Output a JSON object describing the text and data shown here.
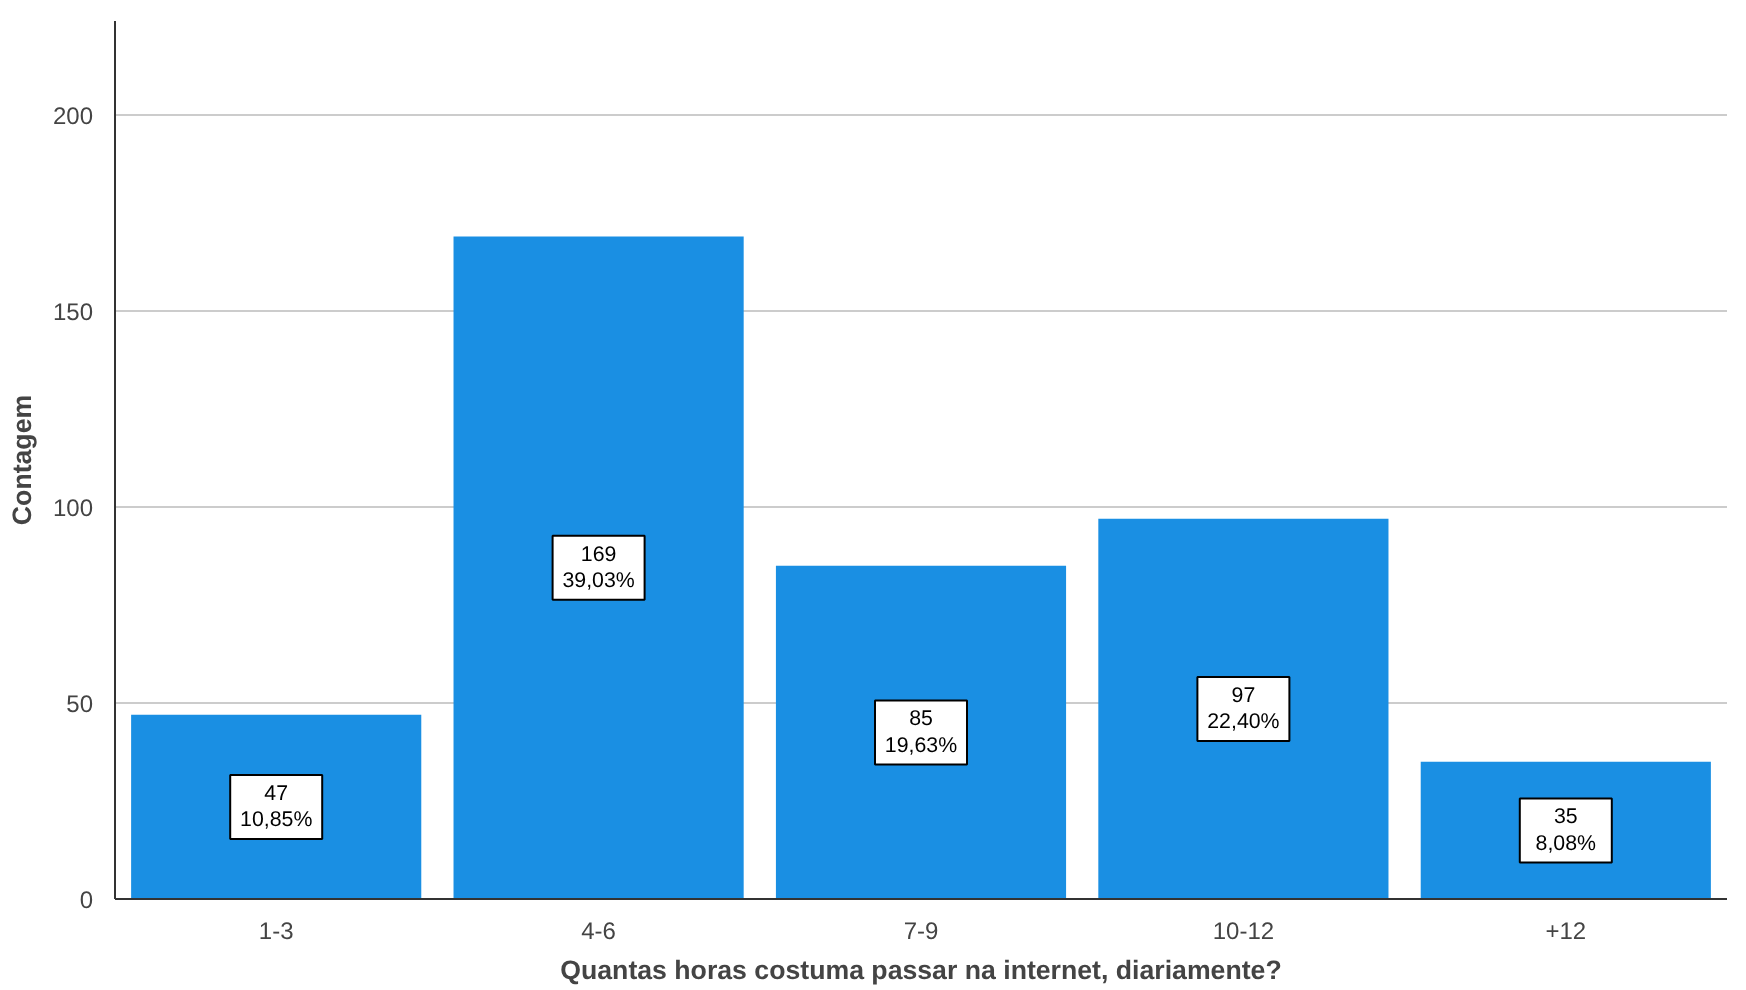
{
  "chart_data": {
    "type": "bar",
    "xlabel": "Quantas horas costuma passar na internet, diariamente?",
    "ylabel": "Contagem",
    "categories": [
      "1-3",
      "4-6",
      "7-9",
      "10-12",
      "+12"
    ],
    "values": [
      47,
      169,
      85,
      97,
      35
    ],
    "value_labels": [
      "47\n10,85%",
      "169\n39,03%",
      "85\n19,63%",
      "97\n22,40%",
      "35\n8,08%"
    ],
    "color": "#1a8fe3",
    "ylim": [
      0,
      224
    ],
    "yticks": [
      0,
      50,
      100,
      150,
      200
    ],
    "grid": "y"
  }
}
